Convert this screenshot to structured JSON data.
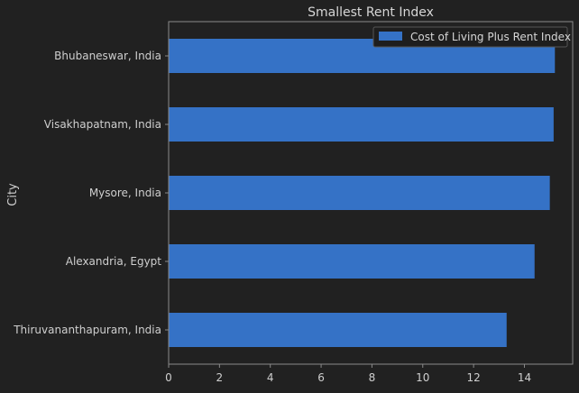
{
  "chart_data": {
    "type": "bar",
    "orientation": "horizontal",
    "title": "Smallest Rent Index",
    "ylabel": "City",
    "xlabel": "",
    "categories": [
      "Bhubaneswar, India",
      "Visakhapatnam, India",
      "Mysore, India",
      "Alexandria, Egypt",
      "Thiruvananthapuram, India"
    ],
    "series": [
      {
        "name": "Cost of Living Plus Rent Index",
        "values": [
          15.2,
          15.15,
          15.0,
          14.4,
          13.3
        ],
        "color": "#3572c6"
      }
    ],
    "xlim": [
      0,
      15.9
    ],
    "xticks": [
      0,
      2,
      4,
      6,
      8,
      10,
      12,
      14
    ],
    "legend_position": "top-right",
    "grid": false,
    "background": "#212121",
    "axes_color": "#8a8a8a",
    "text_color": "#cfcfcf"
  }
}
